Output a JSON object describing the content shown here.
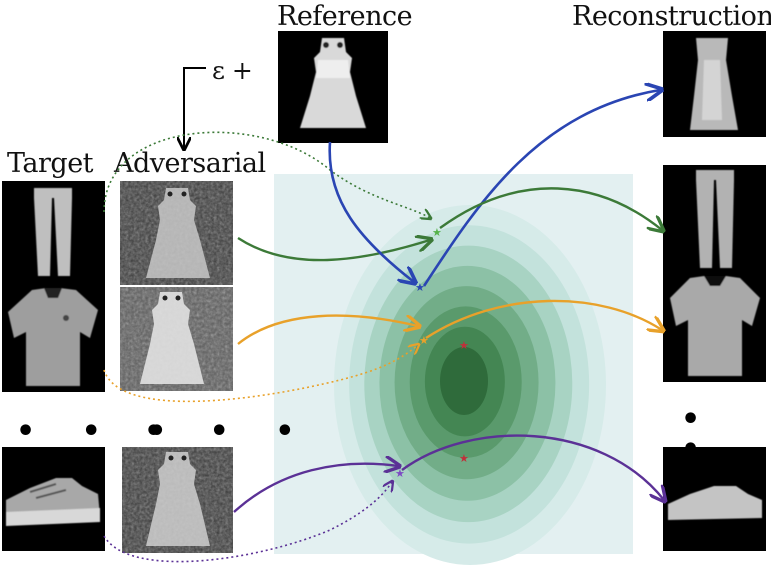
{
  "labels": {
    "reference": "Reference",
    "reconstruction": "Reconstruction",
    "target": "Target",
    "adversarial": "Adversarial",
    "epsilon": "ε +"
  },
  "ellipsis": "• • •",
  "latent_space": {
    "background_color": "#e3f0f1",
    "contour_colors": [
      "#d6ebe9",
      "#c3e2dc",
      "#a8d3c3",
      "#8cc1a6",
      "#72ad88",
      "#5a9a6c",
      "#448653",
      "#2f6b3b"
    ]
  },
  "arrow_colors": {
    "reference": "#2a45b3",
    "trousers": "#3c7a38",
    "shirt": "#e8a12a",
    "sneaker": "#5b3196"
  },
  "markers": {
    "target_star_color": "#c0303a"
  },
  "items": [
    {
      "id": "reference",
      "depiction": "dress"
    },
    {
      "id": "trousers",
      "target": "trousers",
      "adversarial": "dress-noisy",
      "reconstruction": "trousers"
    },
    {
      "id": "shirt",
      "target": "t-shirt",
      "adversarial": "dress-noisy",
      "reconstruction": "t-shirt"
    },
    {
      "id": "sneaker",
      "target": "sneaker",
      "adversarial": "dress-noisy",
      "reconstruction": "sneaker"
    }
  ]
}
